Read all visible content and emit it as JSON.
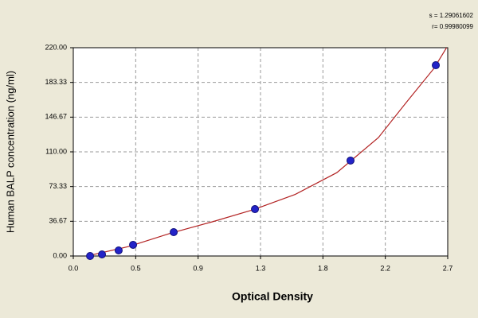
{
  "chart_data": {
    "type": "scatter",
    "xlabel": "Optical Density",
    "ylabel": "Human BALP concentration (ng/ml)",
    "annotations": [
      "s = 1.29061602",
      "r= 0.99980099"
    ],
    "x": [
      0.121,
      0.207,
      0.327,
      0.431,
      0.724,
      1.31,
      1.999,
      2.614
    ],
    "series": [
      {
        "color": "#2323c8",
        "values": [
          0,
          1.7,
          5.9,
          11.8,
          25.2,
          49.5,
          100.8,
          201.5
        ]
      }
    ],
    "fit": {
      "color": "#b22222",
      "x": [
        0.1,
        0.4,
        0.7,
        1.0,
        1.3,
        1.6,
        1.9,
        2.2,
        2.4,
        2.6,
        2.7
      ],
      "values": [
        0,
        10,
        24,
        36,
        49,
        65,
        88,
        125,
        162,
        198,
        222
      ]
    },
    "xlim": [
      0,
      2.7
    ],
    "ylim": [
      0,
      220
    ],
    "xticks": [
      {
        "value": 0,
        "label": "0.0"
      },
      {
        "value": 0.45,
        "label": "0.5"
      },
      {
        "value": 0.9,
        "label": "0.9"
      },
      {
        "value": 1.35,
        "label": "1.3"
      },
      {
        "value": 1.8,
        "label": "1.8"
      },
      {
        "value": 2.25,
        "label": "2.2"
      },
      {
        "value": 2.7,
        "label": "2.7"
      }
    ],
    "yticks": [
      {
        "value": 0,
        "label": "0.00"
      },
      {
        "value": 36.67,
        "label": "36.67"
      },
      {
        "value": 73.33,
        "label": "73.33"
      },
      {
        "value": 110,
        "label": "110.00"
      },
      {
        "value": 146.67,
        "label": "146.67"
      },
      {
        "value": 183.33,
        "label": "183.33"
      },
      {
        "value": 220,
        "label": "220.00"
      }
    ],
    "grid": true
  }
}
